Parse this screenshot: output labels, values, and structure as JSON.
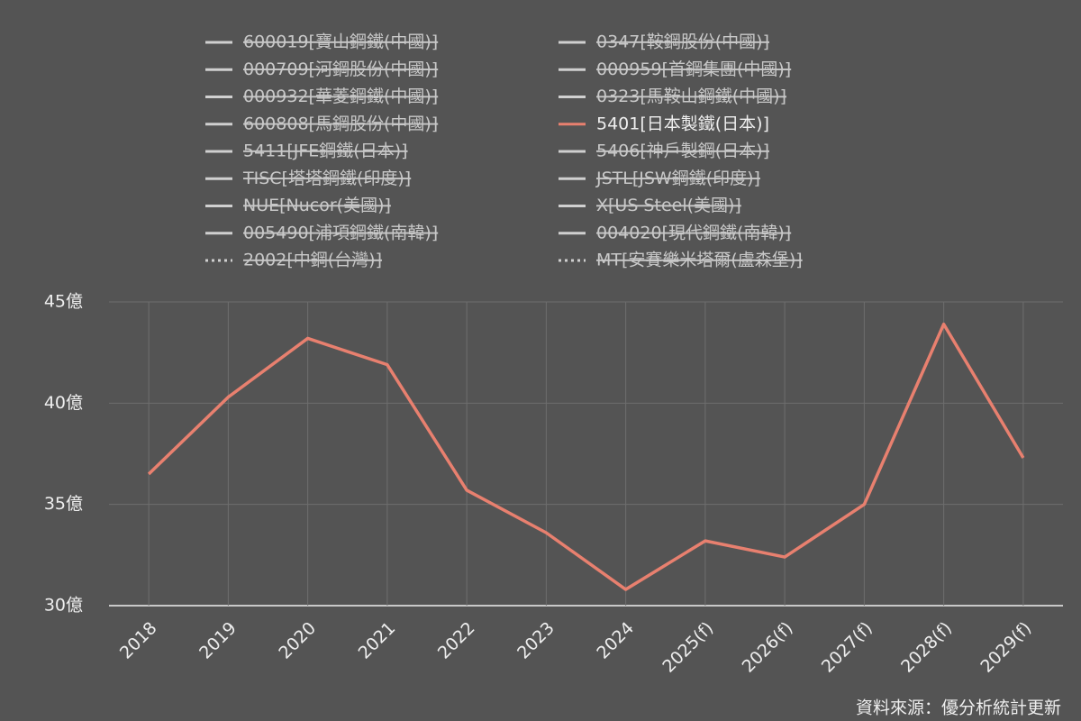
{
  "chart_data": {
    "type": "line",
    "source": "資料來源：優分析統計更新",
    "categories": [
      "2018",
      "2019",
      "2020",
      "2021",
      "2022",
      "2023",
      "2024",
      "2025(f)",
      "2026(f)",
      "2027(f)",
      "2028(f)",
      "2029(f)"
    ],
    "ylim": [
      30,
      45
    ],
    "yticks": [
      {
        "value": 30,
        "label": "30億"
      },
      {
        "value": 35,
        "label": "35億"
      },
      {
        "value": 40,
        "label": "40億"
      },
      {
        "value": 45,
        "label": "45億"
      }
    ],
    "grid": true,
    "series": [
      {
        "name": "600019[寶山鋼鐵(中國)]",
        "color": "#d0d0d0",
        "visible": false
      },
      {
        "name": "0347[鞍鋼股份(中國)]",
        "color": "#d0d0d0",
        "visible": false
      },
      {
        "name": "000709[河鋼股份(中國)]",
        "color": "#d0d0d0",
        "visible": false
      },
      {
        "name": "000959[首鋼集團(中國)]",
        "color": "#d0d0d0",
        "visible": false
      },
      {
        "name": "000932[華菱鋼鐵(中國)]",
        "color": "#d0d0d0",
        "visible": false
      },
      {
        "name": "0323[馬鞍山鋼鐵(中國)]",
        "color": "#d0d0d0",
        "visible": false
      },
      {
        "name": "600808[馬鋼股份(中國)]",
        "color": "#d0d0d0",
        "visible": false
      },
      {
        "name": "5401[日本製鐵(日本)]",
        "color": "#e8806f",
        "visible": true,
        "values": [
          36.5,
          40.3,
          43.2,
          41.9,
          35.7,
          33.6,
          30.8,
          33.2,
          32.4,
          35.0,
          43.9,
          37.3
        ]
      },
      {
        "name": "5411[JFE鋼鐵(日本)]",
        "color": "#d0d0d0",
        "visible": false
      },
      {
        "name": "5406[神戶製鋼(日本)]",
        "color": "#d0d0d0",
        "visible": false
      },
      {
        "name": "TISC[塔塔鋼鐵(印度)]",
        "color": "#d0d0d0",
        "visible": false
      },
      {
        "name": "JSTL[JSW鋼鐵(印度)]",
        "color": "#d0d0d0",
        "visible": false
      },
      {
        "name": "NUE[Nucor(美國)]",
        "color": "#d0d0d0",
        "visible": false
      },
      {
        "name": "X[US Steel(美國)]",
        "color": "#d0d0d0",
        "visible": false
      },
      {
        "name": "005490[浦項鋼鐵(南韓)]",
        "color": "#d0d0d0",
        "visible": false
      },
      {
        "name": "004020[現代鋼鐵(南韓)]",
        "color": "#d0d0d0",
        "visible": false
      },
      {
        "name": "2002[中鋼(台灣)]",
        "color": "#d0d0d0",
        "visible": false,
        "dash": "dotted"
      },
      {
        "name": "MT[安賽樂米塔爾(盧森堡)]",
        "color": "#d0d0d0",
        "visible": false,
        "dash": "dotted"
      }
    ]
  }
}
